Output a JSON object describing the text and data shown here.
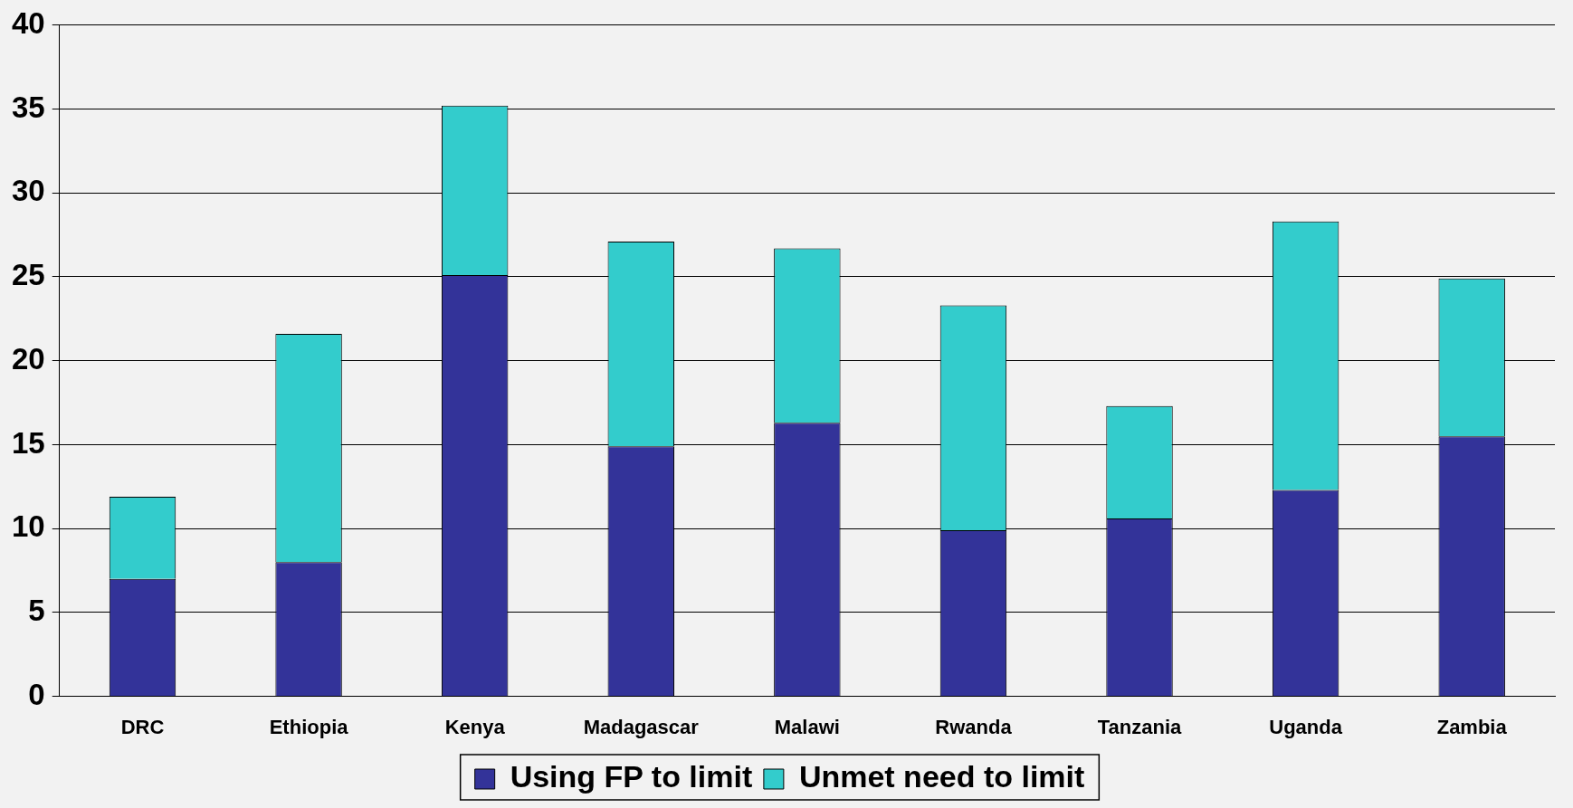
{
  "chart_data": {
    "type": "bar",
    "stacked": true,
    "categories": [
      "DRC",
      "Ethiopia",
      "Kenya",
      "Madagascar",
      "Malawi",
      "Rwanda",
      "Tanzania",
      "Uganda",
      "Zambia"
    ],
    "series": [
      {
        "name": "Using FP to limit",
        "color": "#333399",
        "values": [
          7,
          8,
          25.1,
          14.9,
          16.3,
          9.9,
          10.6,
          12.3,
          15.5
        ]
      },
      {
        "name": "Unmet need to limit",
        "color": "#33cccc",
        "values": [
          4.9,
          13.6,
          10.1,
          12.2,
          10.4,
          13.4,
          6.7,
          16.0,
          9.4
        ]
      }
    ],
    "ylim": [
      0,
      40
    ],
    "yticks": [
      0,
      5,
      10,
      15,
      20,
      25,
      30,
      35,
      40
    ],
    "grid": "y",
    "legend": "bottom"
  }
}
